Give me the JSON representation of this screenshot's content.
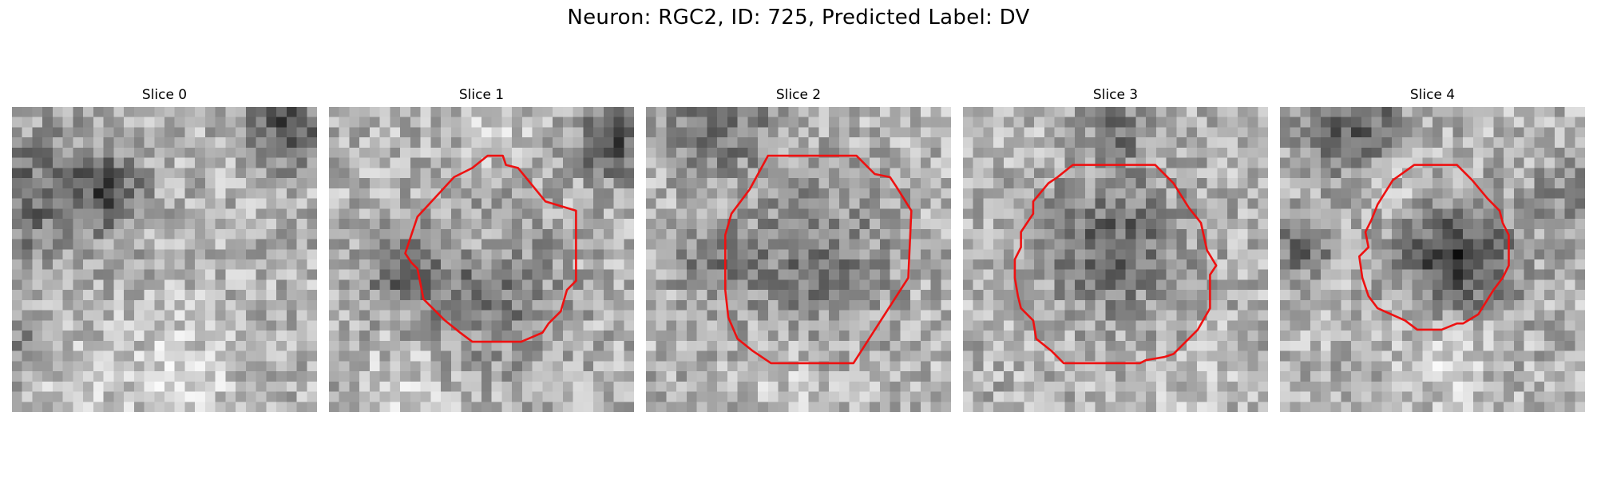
{
  "figure": {
    "title": "Neuron: RGC2, ID: 725, Predicted Label: DV"
  },
  "colors": {
    "contour": "#ee1111",
    "background": "#ffffff",
    "colormap": "gray"
  },
  "panels": [
    {
      "title": "Slice 0",
      "has_contour": false,
      "seed": 11,
      "blobs": [
        [
          0.08,
          0.3,
          0.22,
          0.45
        ],
        [
          0.32,
          0.27,
          0.11,
          0.55
        ],
        [
          0.9,
          0.07,
          0.12,
          0.65
        ],
        [
          0.04,
          0.8,
          0.12,
          0.3
        ],
        [
          0.55,
          0.9,
          0.2,
          -0.25
        ],
        [
          0.15,
          0.92,
          0.18,
          -0.15
        ]
      ],
      "contour": []
    },
    {
      "title": "Slice 1",
      "has_contour": true,
      "seed": 23,
      "blobs": [
        [
          0.52,
          0.6,
          0.22,
          0.42
        ],
        [
          0.22,
          0.55,
          0.12,
          0.4
        ],
        [
          0.92,
          0.12,
          0.11,
          0.65
        ],
        [
          0.52,
          0.45,
          0.08,
          -0.25
        ],
        [
          0.55,
          0.05,
          0.12,
          -0.15
        ],
        [
          0.25,
          0.92,
          0.14,
          -0.2
        ]
      ],
      "contour": [
        [
          0.52,
          0.16
        ],
        [
          0.57,
          0.16
        ],
        [
          0.58,
          0.19
        ],
        [
          0.62,
          0.2
        ],
        [
          0.71,
          0.31
        ],
        [
          0.81,
          0.34
        ],
        [
          0.81,
          0.57
        ],
        [
          0.78,
          0.6
        ],
        [
          0.76,
          0.67
        ],
        [
          0.72,
          0.71
        ],
        [
          0.7,
          0.74
        ],
        [
          0.63,
          0.77
        ],
        [
          0.47,
          0.77
        ],
        [
          0.43,
          0.74
        ],
        [
          0.38,
          0.7
        ],
        [
          0.31,
          0.63
        ],
        [
          0.29,
          0.53
        ],
        [
          0.27,
          0.51
        ],
        [
          0.25,
          0.48
        ],
        [
          0.26,
          0.45
        ],
        [
          0.29,
          0.36
        ],
        [
          0.41,
          0.23
        ],
        [
          0.47,
          0.2
        ]
      ]
    },
    {
      "title": "Slice 2",
      "has_contour": true,
      "seed": 37,
      "blobs": [
        [
          0.55,
          0.5,
          0.24,
          0.4
        ],
        [
          0.25,
          0.06,
          0.16,
          0.45
        ],
        [
          0.2,
          0.5,
          0.12,
          0.35
        ],
        [
          0.45,
          0.88,
          0.14,
          -0.15
        ]
      ],
      "contour": [
        [
          0.4,
          0.16
        ],
        [
          0.69,
          0.16
        ],
        [
          0.75,
          0.22
        ],
        [
          0.8,
          0.23
        ],
        [
          0.82,
          0.26
        ],
        [
          0.87,
          0.34
        ],
        [
          0.86,
          0.56
        ],
        [
          0.77,
          0.7
        ],
        [
          0.68,
          0.84
        ],
        [
          0.41,
          0.84
        ],
        [
          0.35,
          0.8
        ],
        [
          0.3,
          0.76
        ],
        [
          0.27,
          0.69
        ],
        [
          0.26,
          0.6
        ],
        [
          0.26,
          0.42
        ],
        [
          0.28,
          0.35
        ],
        [
          0.34,
          0.27
        ]
      ]
    },
    {
      "title": "Slice 3",
      "has_contour": true,
      "seed": 53,
      "blobs": [
        [
          0.5,
          0.45,
          0.22,
          0.5
        ],
        [
          0.5,
          0.08,
          0.1,
          0.4
        ],
        [
          0.1,
          0.06,
          0.12,
          -0.15
        ],
        [
          0.8,
          0.9,
          0.14,
          -0.15
        ]
      ],
      "contour": [
        [
          0.36,
          0.19
        ],
        [
          0.63,
          0.19
        ],
        [
          0.69,
          0.25
        ],
        [
          0.74,
          0.33
        ],
        [
          0.78,
          0.38
        ],
        [
          0.8,
          0.47
        ],
        [
          0.83,
          0.52
        ],
        [
          0.81,
          0.55
        ],
        [
          0.81,
          0.66
        ],
        [
          0.77,
          0.73
        ],
        [
          0.69,
          0.81
        ],
        [
          0.66,
          0.82
        ],
        [
          0.6,
          0.83
        ],
        [
          0.58,
          0.84
        ],
        [
          0.33,
          0.84
        ],
        [
          0.29,
          0.8
        ],
        [
          0.24,
          0.76
        ],
        [
          0.23,
          0.7
        ],
        [
          0.19,
          0.66
        ],
        [
          0.18,
          0.62
        ],
        [
          0.17,
          0.56
        ],
        [
          0.17,
          0.5
        ],
        [
          0.19,
          0.46
        ],
        [
          0.19,
          0.41
        ],
        [
          0.23,
          0.35
        ],
        [
          0.23,
          0.31
        ],
        [
          0.28,
          0.25
        ],
        [
          0.31,
          0.23
        ]
      ]
    },
    {
      "title": "Slice 4",
      "has_contour": true,
      "seed": 71,
      "blobs": [
        [
          0.62,
          0.5,
          0.16,
          0.7
        ],
        [
          0.48,
          0.48,
          0.12,
          0.3
        ],
        [
          0.25,
          0.06,
          0.16,
          0.55
        ],
        [
          0.08,
          0.45,
          0.1,
          0.5
        ],
        [
          0.95,
          0.3,
          0.12,
          0.3
        ],
        [
          0.55,
          0.85,
          0.14,
          -0.25
        ],
        [
          0.35,
          0.25,
          0.1,
          -0.2
        ]
      ],
      "contour": [
        [
          0.44,
          0.19
        ],
        [
          0.58,
          0.19
        ],
        [
          0.63,
          0.24
        ],
        [
          0.68,
          0.3
        ],
        [
          0.72,
          0.34
        ],
        [
          0.73,
          0.38
        ],
        [
          0.75,
          0.42
        ],
        [
          0.75,
          0.52
        ],
        [
          0.73,
          0.56
        ],
        [
          0.7,
          0.6
        ],
        [
          0.65,
          0.68
        ],
        [
          0.6,
          0.71
        ],
        [
          0.58,
          0.71
        ],
        [
          0.53,
          0.73
        ],
        [
          0.45,
          0.73
        ],
        [
          0.41,
          0.7
        ],
        [
          0.32,
          0.66
        ],
        [
          0.29,
          0.62
        ],
        [
          0.27,
          0.56
        ],
        [
          0.26,
          0.49
        ],
        [
          0.29,
          0.46
        ],
        [
          0.28,
          0.41
        ],
        [
          0.3,
          0.37
        ],
        [
          0.32,
          0.32
        ],
        [
          0.37,
          0.24
        ]
      ]
    }
  ]
}
